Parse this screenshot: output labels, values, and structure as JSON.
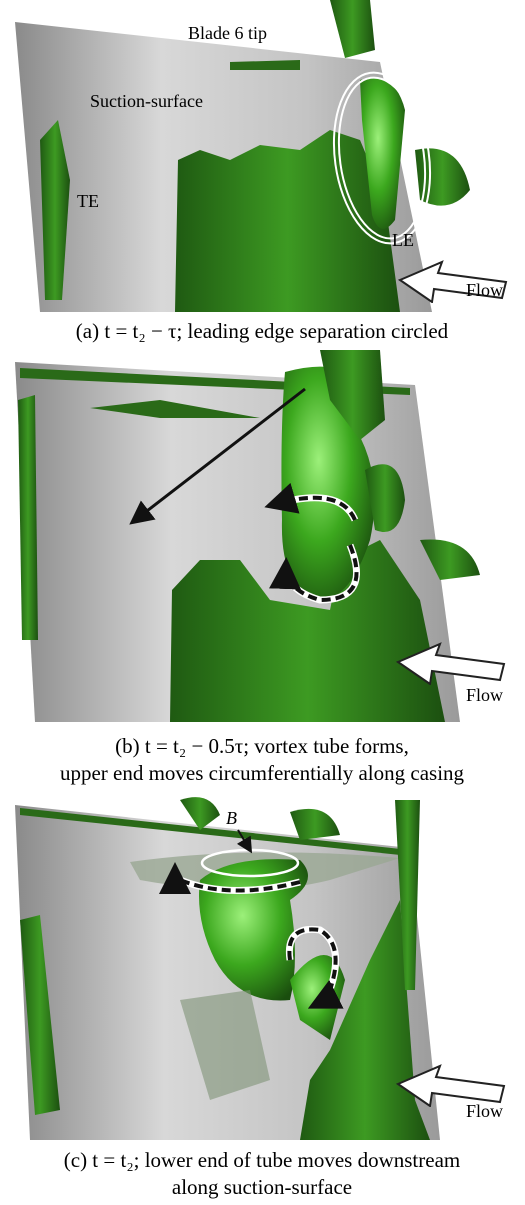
{
  "panels": [
    {
      "labels": {
        "tip": "Blade 6 tip",
        "surface": "Suction-surface",
        "te": "TE",
        "le": "LE",
        "flow": "Flow"
      },
      "caption": [
        "(a) t = t₂ − τ; leading edge separation circled"
      ]
    },
    {
      "labels": {
        "flow": "Flow"
      },
      "caption": [
        "(b) t = t₂ − 0.5τ; vortex tube forms,",
        "upper end moves circumferentially along casing"
      ]
    },
    {
      "labels": {
        "b": "B",
        "flow": "Flow"
      },
      "caption": [
        "(c) t = t₂; lower end of tube moves downstream",
        "along suction-surface"
      ]
    }
  ]
}
